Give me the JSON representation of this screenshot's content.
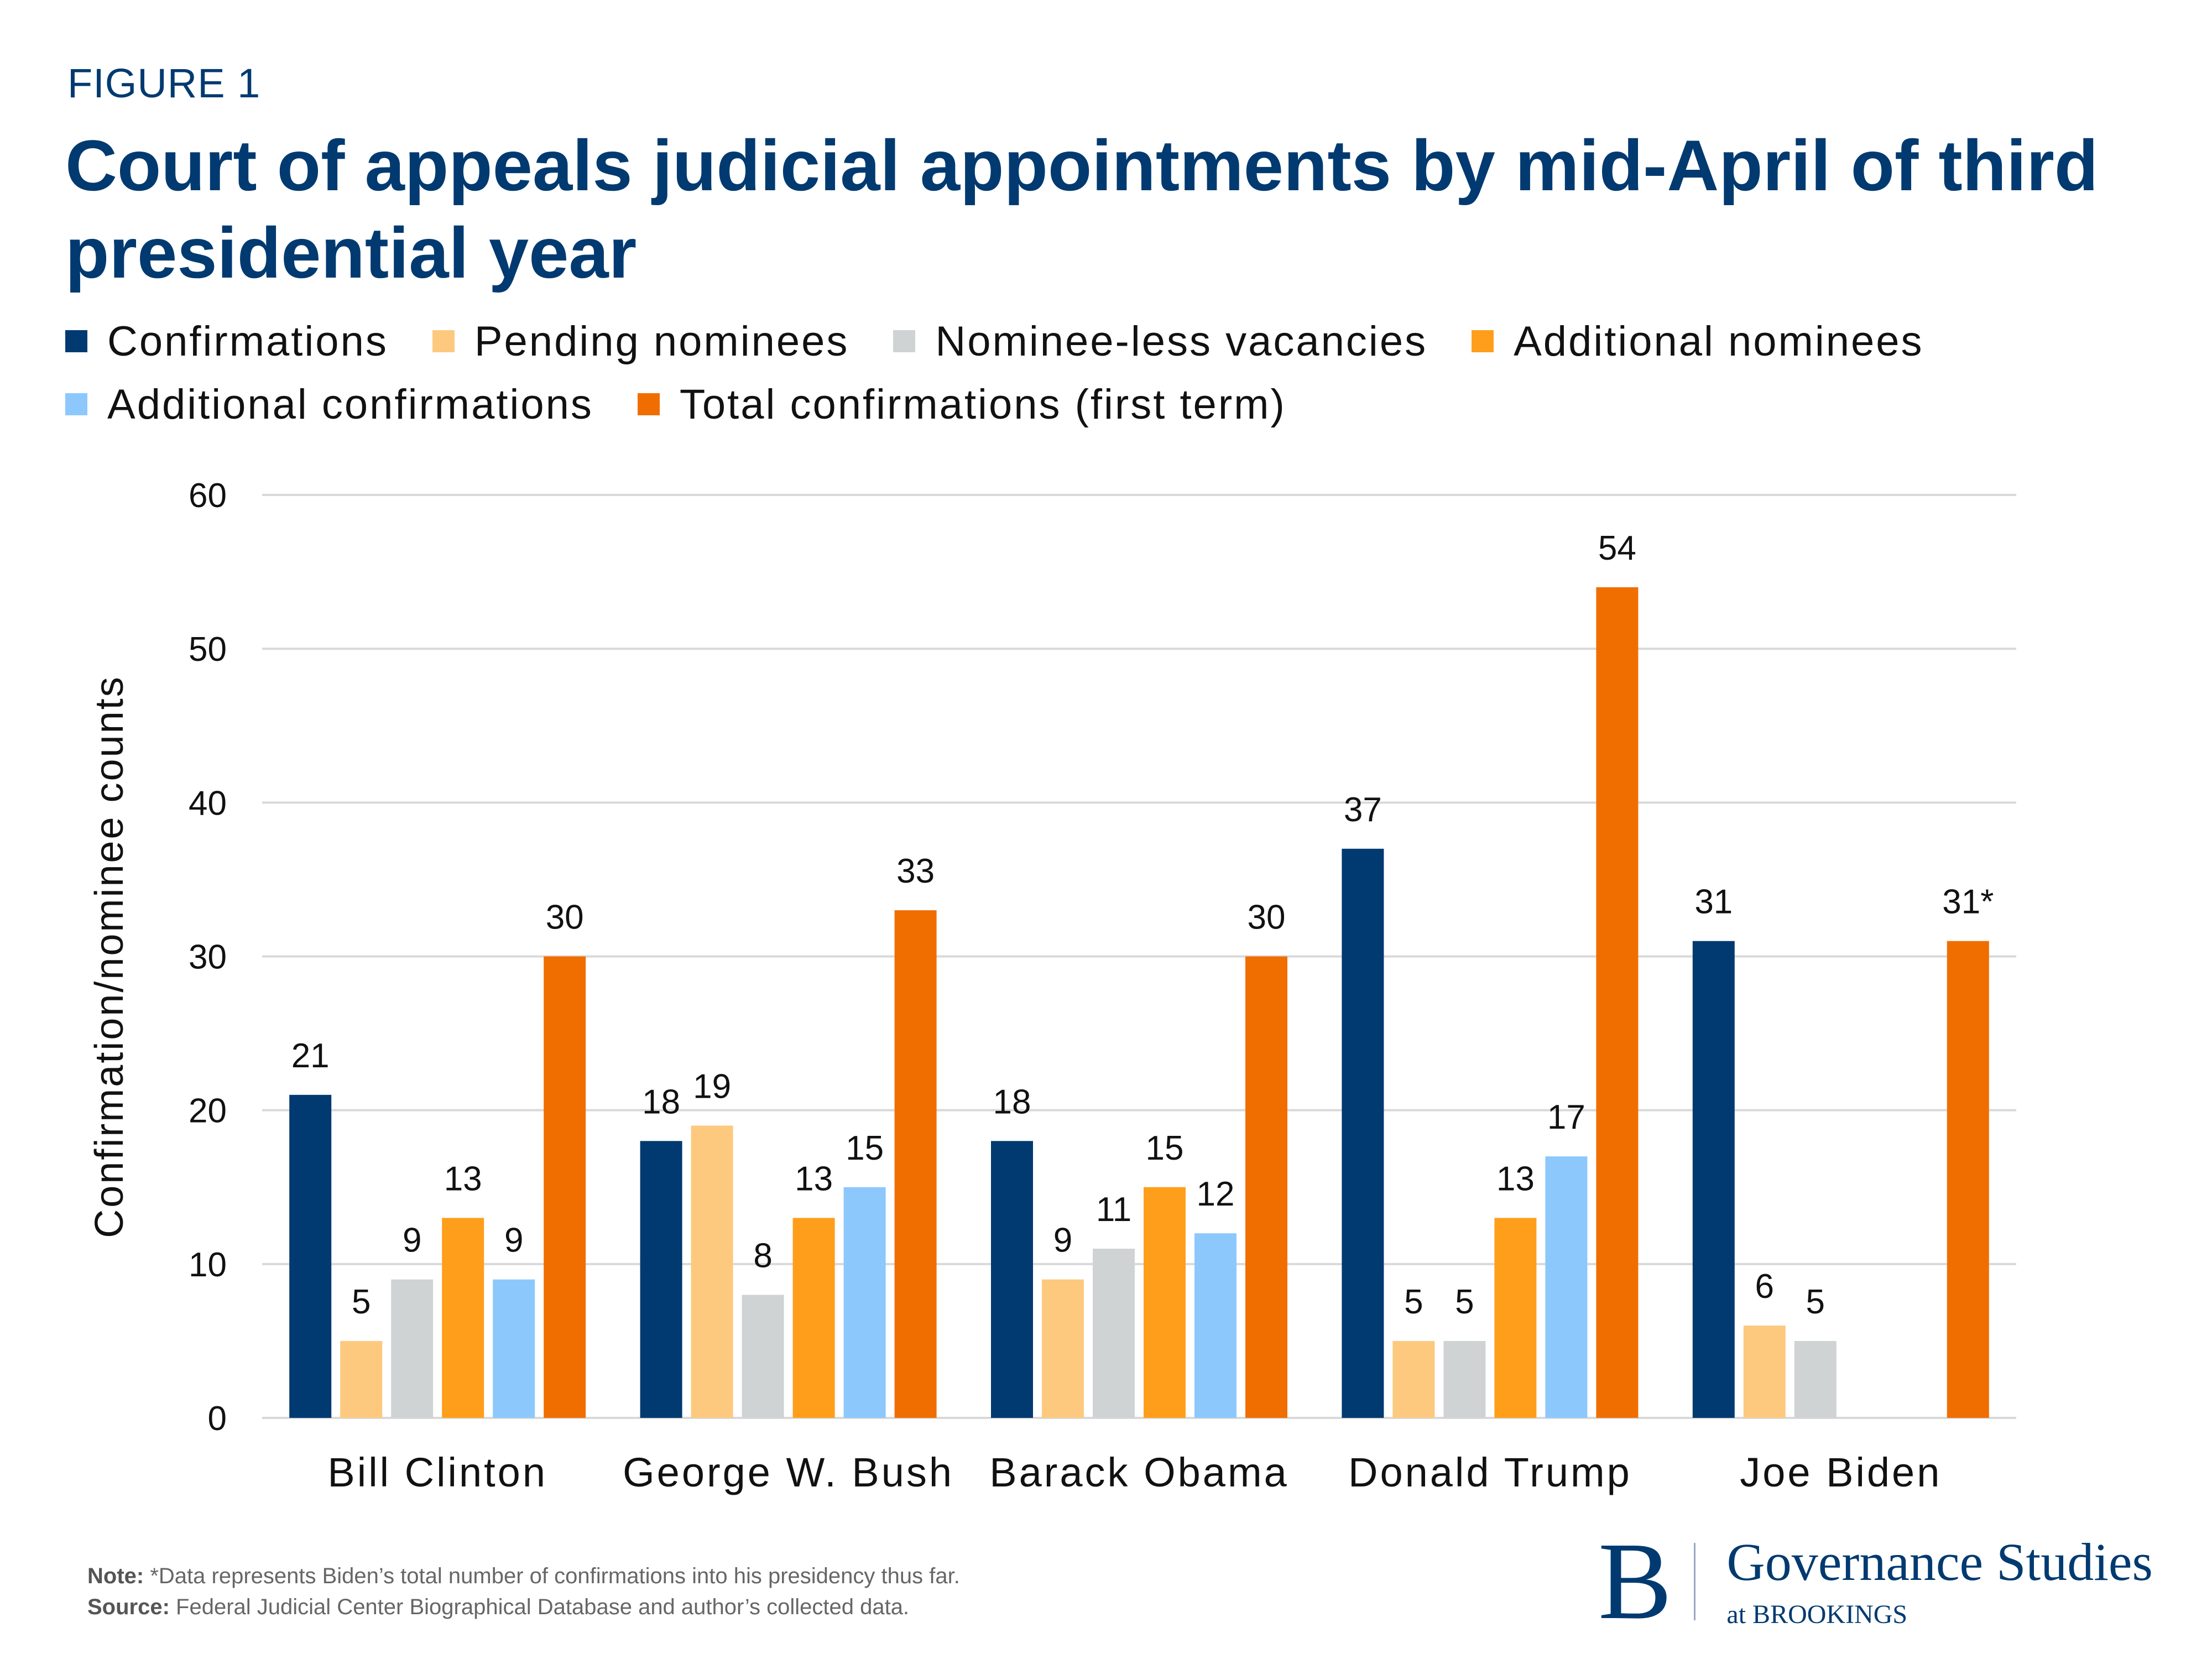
{
  "figure_label": "FIGURE 1",
  "title": "Court of appeals judicial appointments by mid-April of third presidential year",
  "footer": {
    "note_label": "Note:",
    "note_text": " *Data represents Biden’s total number of confirmations into his presidency thus far.",
    "source_label": "Source:",
    "source_text": " Federal Judicial Center Biographical Database and author’s collected data."
  },
  "logo": {
    "mark": "B",
    "name": "Governance Studies",
    "sub": "at BROOKINGS"
  },
  "chart_data": {
    "type": "bar",
    "title": "Court of appeals judicial appointments by mid-April of third presidential year",
    "xlabel": "",
    "ylabel": "Confirmation/nominee counts",
    "ylim": [
      0,
      60
    ],
    "yticks": [
      0,
      10,
      20,
      30,
      40,
      50,
      60
    ],
    "grid": true,
    "legend_position": "top",
    "categories": [
      "Bill Clinton",
      "George W. Bush",
      "Barack Obama",
      "Donald Trump",
      "Joe Biden"
    ],
    "series": [
      {
        "name": "Confirmations",
        "color": "#003a70",
        "values": [
          21,
          18,
          18,
          37,
          31
        ],
        "labels": [
          "21",
          "18",
          "18",
          "37",
          "31"
        ]
      },
      {
        "name": "Pending nominees",
        "color": "#fdc97f",
        "values": [
          5,
          19,
          9,
          5,
          6
        ],
        "labels": [
          "5",
          "19",
          "9",
          "5",
          "6"
        ]
      },
      {
        "name": "Nominee-less vacancies",
        "color": "#d0d3d4",
        "values": [
          9,
          8,
          11,
          5,
          5
        ],
        "labels": [
          "9",
          "8",
          "11",
          "5",
          "5"
        ]
      },
      {
        "name": "Additional nominees",
        "color": "#ff9e1b",
        "values": [
          13,
          13,
          15,
          13,
          null
        ],
        "labels": [
          "13",
          "13",
          "15",
          "13",
          ""
        ]
      },
      {
        "name": "Additional confirmations",
        "color": "#8dc8fc",
        "values": [
          9,
          15,
          12,
          17,
          null
        ],
        "labels": [
          "9",
          "15",
          "12",
          "17",
          ""
        ]
      },
      {
        "name": "Total confirmations (first term)",
        "color": "#f06e00",
        "values": [
          30,
          33,
          30,
          54,
          31
        ],
        "labels": [
          "30",
          "33",
          "30",
          "54",
          "31*"
        ]
      }
    ]
  }
}
